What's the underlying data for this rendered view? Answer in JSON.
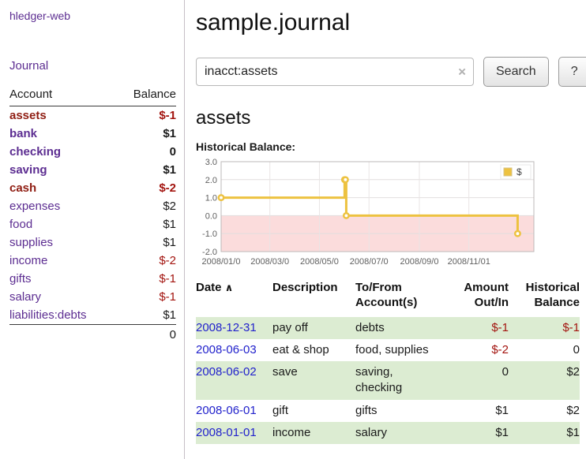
{
  "app": {
    "title": "hledger-web"
  },
  "sidebar": {
    "journal_link": "Journal",
    "header": {
      "account": "Account",
      "balance": "Balance"
    },
    "accounts": [
      {
        "name": "assets",
        "balance": "$-1",
        "indent": 0
      },
      {
        "name": "bank",
        "balance": "$1",
        "indent": 1
      },
      {
        "name": "checking",
        "balance": "0",
        "indent": 2
      },
      {
        "name": "saving",
        "balance": "$1",
        "indent": 2
      },
      {
        "name": "cash",
        "balance": "$-2",
        "indent": 1
      },
      {
        "name": "expenses",
        "balance": "$2",
        "indent": 0
      },
      {
        "name": "food",
        "balance": "$1",
        "indent": 1
      },
      {
        "name": "supplies",
        "balance": "$1",
        "indent": 1
      },
      {
        "name": "income",
        "balance": "$-2",
        "indent": 0
      },
      {
        "name": "gifts",
        "balance": "$-1",
        "indent": 1
      },
      {
        "name": "salary",
        "balance": "$-1",
        "indent": 1
      },
      {
        "name": "liabilities:debts",
        "balance": "$1",
        "indent": 0
      }
    ],
    "total": "0"
  },
  "main": {
    "title": "sample.journal",
    "search": {
      "value": "inacct:assets",
      "clear_icon": "×",
      "button_label": "Search",
      "help_label": "?"
    },
    "account_heading": "assets",
    "chart_label": "Historical Balance:"
  },
  "chart_data": {
    "type": "line",
    "step": true,
    "title": "Historical Balance",
    "legend_position": "top-right",
    "grid": true,
    "ylim": [
      -2.0,
      3.0
    ],
    "yticks": [
      3.0,
      2.0,
      1.0,
      0.0,
      -1.0,
      -2.0
    ],
    "x_start": "2008-01-01",
    "x_end": "2009-01-20",
    "xticks": [
      {
        "date": "2008-01-01",
        "label": "2008/01/0"
      },
      {
        "date": "2008-03-01",
        "label": "2008/03/0"
      },
      {
        "date": "2008-05-01",
        "label": "2008/05/0"
      },
      {
        "date": "2008-07-01",
        "label": "2008/07/0"
      },
      {
        "date": "2008-09-01",
        "label": "2008/09/0"
      },
      {
        "date": "2008-11-01",
        "label": "2008/11/01"
      }
    ],
    "series": [
      {
        "name": "$",
        "color": "#edc240",
        "points": [
          [
            "2008-01-01",
            1
          ],
          [
            "2008-06-01",
            2
          ],
          [
            "2008-06-02",
            2
          ],
          [
            "2008-06-03",
            0
          ],
          [
            "2008-12-31",
            -1
          ]
        ]
      }
    ],
    "negative_region_fill": "#fbdcdc"
  },
  "register": {
    "headers": {
      "date": "Date",
      "description": "Description",
      "accounts": "To/From Account(s)",
      "amount": "Amount Out/In",
      "balance": "Historical Balance"
    },
    "sort_icon": "∧",
    "rows": [
      {
        "date": "2008-12-31",
        "description": "pay off",
        "accounts": "debts",
        "amount": "$-1",
        "balance": "$-1"
      },
      {
        "date": "2008-06-03",
        "description": "eat & shop",
        "accounts": "food, supplies",
        "amount": "$-2",
        "balance": "0"
      },
      {
        "date": "2008-06-02",
        "description": "save",
        "accounts": "saving, checking",
        "amount": "0",
        "balance": "$2"
      },
      {
        "date": "2008-06-01",
        "description": "gift",
        "accounts": "gifts",
        "amount": "$1",
        "balance": "$2"
      },
      {
        "date": "2008-01-01",
        "description": "income",
        "accounts": "salary",
        "amount": "$1",
        "balance": "$1"
      }
    ]
  },
  "colors": {
    "link_purple": "#5c2d91",
    "negative_red": "#a3140f",
    "date_link_blue": "#2222cc",
    "row_green": "#dcecd2",
    "chart_line_gold": "#edc240",
    "chart_negative_pink": "#fbdcdc"
  }
}
